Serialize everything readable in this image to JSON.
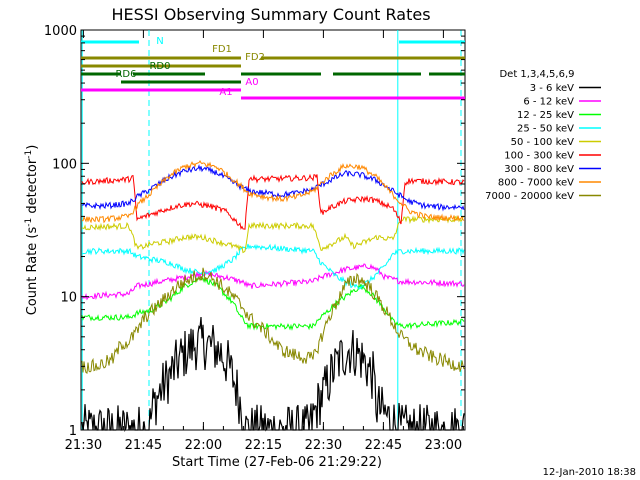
{
  "chart_data": {
    "type": "line",
    "title": "HESSI Observing Summary Count Rates",
    "xlabel": "Start Time (27-Feb-06 21:29:22)",
    "ylabel_prefix": "Count Rate (s",
    "ylabel_sup1": "-1",
    "ylabel_mid": " detector",
    "ylabel_sup2": "-1",
    "ylabel_suffix": ")",
    "yscale": "log",
    "xlim_minutes": [
      0,
      96
    ],
    "ylim": [
      1,
      1000
    ],
    "xticks": [
      {
        "label": "21:30",
        "minute": 0.6
      },
      {
        "label": "21:45",
        "minute": 15.6
      },
      {
        "label": "22:00",
        "minute": 30.6
      },
      {
        "label": "22:15",
        "minute": 45.6
      },
      {
        "label": "22:30",
        "minute": 60.6
      },
      {
        "label": "22:45",
        "minute": 75.6
      },
      {
        "label": "23:00",
        "minute": 90.6
      }
    ],
    "yticks": [
      {
        "label": "1",
        "value": 1
      },
      {
        "label": "10",
        "value": 10
      },
      {
        "label": "100",
        "value": 100
      },
      {
        "label": "1000",
        "value": 1000
      }
    ],
    "legend_title": "Det 1,3,4,5,6,9",
    "legend_position": "right",
    "series": [
      {
        "name": "3 - 6 keV",
        "color": "#000000",
        "x": [
          0,
          17,
          18,
          20,
          23,
          25,
          27,
          28,
          30,
          33,
          35,
          37,
          39,
          40,
          41,
          57,
          59,
          61,
          63,
          65,
          67,
          69,
          71,
          73,
          74,
          80,
          96
        ],
        "y": [
          1,
          1,
          1.5,
          2,
          2.8,
          3.5,
          4,
          4.3,
          4.5,
          4.2,
          3.8,
          3,
          2,
          1.5,
          1,
          1,
          1.5,
          2,
          2.8,
          3.5,
          4,
          3.8,
          3.2,
          2.5,
          1.5,
          1,
          1
        ]
      },
      {
        "name": "6 - 12 keV",
        "color": "#ff00ff",
        "x": [
          0,
          12,
          14,
          20,
          26,
          30,
          36,
          40,
          42,
          58,
          60,
          66,
          72,
          74,
          76,
          80,
          96
        ],
        "y": [
          10,
          10.5,
          12,
          13,
          14,
          15,
          14,
          13,
          12,
          13,
          14,
          16,
          17,
          16,
          14,
          13,
          12.5
        ]
      },
      {
        "name": "12 - 25 keV",
        "color": "#00ff00",
        "x": [
          0,
          12,
          14,
          18,
          22,
          26,
          30,
          34,
          38,
          40,
          42,
          58,
          60,
          64,
          68,
          70,
          72,
          76,
          78,
          80,
          96
        ],
        "y": [
          7,
          7,
          7.5,
          8,
          9.5,
          12,
          14,
          12,
          9,
          7,
          6,
          6,
          7,
          9,
          11,
          12,
          11,
          8,
          6.5,
          6,
          6.5
        ]
      },
      {
        "name": "25 - 50 keV",
        "color": "#00ffff",
        "x": [
          0,
          12,
          14,
          18,
          22,
          26,
          30,
          34,
          38,
          40,
          42,
          58,
          60,
          64,
          68,
          70,
          72,
          76,
          78,
          80,
          96
        ],
        "y": [
          22,
          22,
          20,
          19,
          18,
          16,
          15,
          16,
          19,
          22,
          24,
          22,
          18,
          14,
          12,
          12,
          13,
          17,
          21,
          22,
          22
        ]
      },
      {
        "name": "50 - 100 keV",
        "color": "#cccc00",
        "x": [
          0,
          12,
          14,
          18,
          22,
          26,
          30,
          34,
          38,
          41,
          42,
          58,
          60,
          64,
          66,
          68,
          70,
          74,
          78,
          80,
          96
        ],
        "y": [
          33,
          34,
          23,
          25,
          26,
          28,
          28,
          26,
          24,
          22,
          34,
          34,
          23,
          26,
          28,
          24,
          25,
          28,
          27,
          38,
          38
        ]
      },
      {
        "name": "100 - 300 keV",
        "color": "#ff0000",
        "x": [
          0,
          12,
          13,
          14,
          16,
          20,
          24,
          28,
          32,
          36,
          40,
          41,
          42,
          44,
          58,
          59,
          60,
          62,
          66,
          70,
          72,
          74,
          78,
          80,
          81,
          82,
          96
        ],
        "y": [
          72,
          76,
          80,
          38,
          40,
          44,
          48,
          50,
          48,
          44,
          34,
          32,
          78,
          76,
          78,
          80,
          42,
          46,
          52,
          54,
          54,
          52,
          46,
          36,
          72,
          74,
          72
        ]
      },
      {
        "name": "300 - 800 keV",
        "color": "#0000ff",
        "x": [
          0,
          6,
          12,
          14,
          18,
          22,
          26,
          30,
          34,
          38,
          42,
          46,
          50,
          54,
          58,
          62,
          66,
          70,
          74,
          78,
          82,
          86,
          90,
          96
        ],
        "y": [
          48,
          48,
          50,
          56,
          66,
          78,
          88,
          92,
          85,
          72,
          62,
          60,
          58,
          60,
          64,
          74,
          84,
          82,
          74,
          62,
          52,
          48,
          47,
          47
        ]
      },
      {
        "name": "800 - 7000 keV",
        "color": "#ff8800",
        "x": [
          0,
          6,
          12,
          14,
          18,
          22,
          26,
          30,
          34,
          38,
          42,
          46,
          50,
          54,
          58,
          62,
          66,
          70,
          74,
          78,
          82,
          86,
          90,
          96
        ],
        "y": [
          38,
          38,
          40,
          48,
          62,
          80,
          95,
          100,
          94,
          76,
          60,
          56,
          54,
          56,
          62,
          80,
          96,
          94,
          78,
          58,
          44,
          40,
          39,
          39
        ]
      },
      {
        "name": "7000 - 20000 keV",
        "color": "#888800",
        "x": [
          0,
          4,
          8,
          10,
          12,
          14,
          16,
          20,
          24,
          28,
          31,
          34,
          38,
          41,
          42,
          46,
          50,
          54,
          58,
          62,
          66,
          69,
          72,
          76,
          80,
          84,
          88,
          92,
          96
        ],
        "y": [
          3,
          3,
          3.4,
          4.4,
          4.6,
          5.5,
          7,
          9,
          12,
          14,
          15,
          13,
          10,
          8,
          7,
          5.5,
          4,
          3.6,
          3.4,
          7,
          12,
          14,
          12,
          8,
          5,
          4,
          3.5,
          3.2,
          3
        ]
      }
    ],
    "state_bars": [
      {
        "label": "N",
        "color": "#00ffff",
        "segments": [
          [
            0,
            14.5
          ],
          [
            79.5,
            96
          ]
        ]
      },
      {
        "label": "FD1",
        "color": "#888800",
        "segments": [
          [
            0,
            40
          ],
          [
            45,
            96
          ]
        ]
      },
      {
        "label": "FD2",
        "color": "#888800",
        "segments": [
          [
            0,
            40
          ]
        ]
      },
      {
        "label": "RD0",
        "color": "#006600",
        "segments": [
          [
            0,
            10
          ],
          [
            13,
            31
          ],
          [
            40,
            60
          ],
          [
            63,
            85
          ],
          [
            87,
            96
          ]
        ]
      },
      {
        "label": "RD6",
        "color": "#006600",
        "segments": [
          [
            10,
            40
          ]
        ]
      },
      {
        "label": "A0",
        "color": "#ff00ff",
        "segments": [
          [
            0,
            40
          ]
        ]
      },
      {
        "label": "A1",
        "color": "#ff00ff",
        "segments": [
          [
            40,
            96
          ]
        ]
      }
    ],
    "vertical_lines": [
      {
        "minute": 0.3,
        "style": "solid",
        "color": "#00ffff"
      },
      {
        "minute": 17,
        "style": "dashed",
        "color": "#00ffff"
      },
      {
        "minute": 79.2,
        "style": "solid",
        "color": "#00ffff"
      },
      {
        "minute": 95,
        "style": "dashed",
        "color": "#00ffff"
      }
    ]
  },
  "footer": {
    "timestamp": "12-Jan-2010 18:38"
  }
}
